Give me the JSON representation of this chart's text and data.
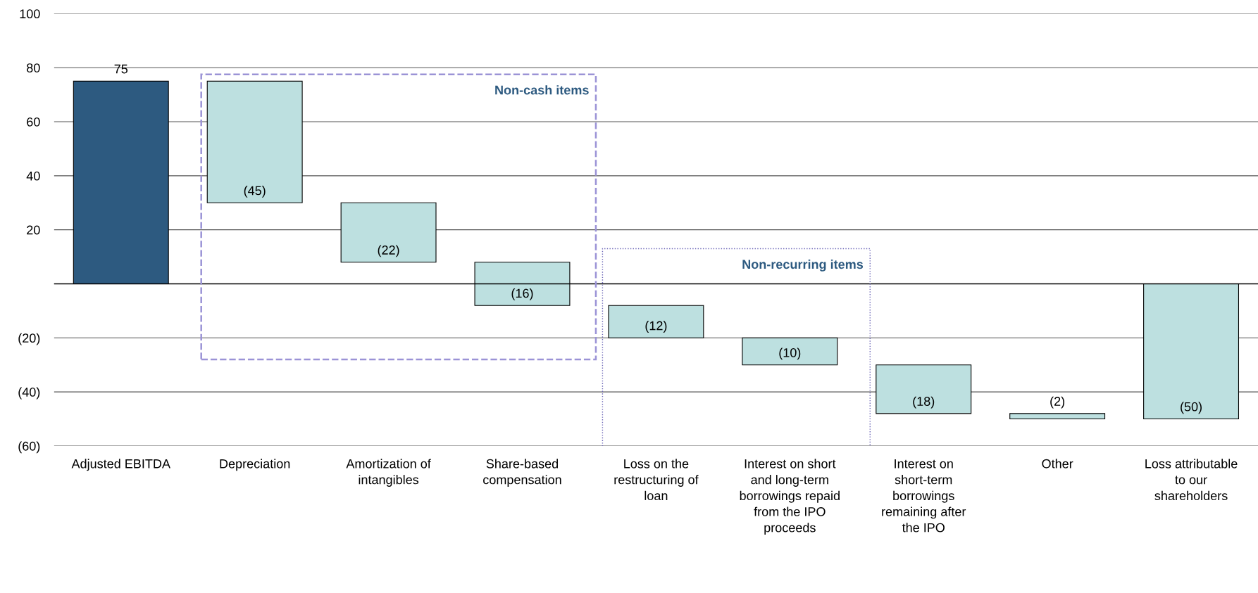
{
  "chart_data": {
    "type": "bar",
    "categories": [
      "Adjusted EBITDA",
      "Depreciation",
      "Amortization of intangibles",
      "Share-based compensation",
      "Loss on the restructuring of loan",
      "Interest on short and long-term borrowings repaid from the IPO proceeds",
      "Interest on short-term borrowings remaining after the IPO",
      "Other",
      "Loss attributable to our shareholders"
    ],
    "values": [
      75,
      -45,
      -22,
      -16,
      -12,
      -10,
      -18,
      -2,
      -50
    ],
    "base": [
      0,
      75,
      30,
      8,
      -8,
      -20,
      -30,
      -48,
      0
    ],
    "colors": [
      "#2d5a80",
      "#bde0e0",
      "#bde0e0",
      "#bde0e0",
      "#bde0e0",
      "#bde0e0",
      "#bde0e0",
      "#bde0e0",
      "#bde0e0"
    ],
    "value_labels": [
      "75",
      "(45)",
      "(22)",
      "(16)",
      "(12)",
      "(10)",
      "(18)",
      "(2)",
      "(50)"
    ],
    "ylim": [
      -60,
      100
    ],
    "yticks": [
      {
        "value": -60,
        "label": "(60)"
      },
      {
        "value": -40,
        "label": "(40)"
      },
      {
        "value": -20,
        "label": "(20)"
      },
      {
        "value": 0,
        "label": null
      },
      20,
      40,
      60,
      80,
      100
    ],
    "grid": "y",
    "ref_lines": [
      {
        "axis": "y",
        "value": 0,
        "color": "#000000"
      }
    ],
    "annotations": [
      "Non-cash items",
      "Non-recurring items"
    ]
  }
}
